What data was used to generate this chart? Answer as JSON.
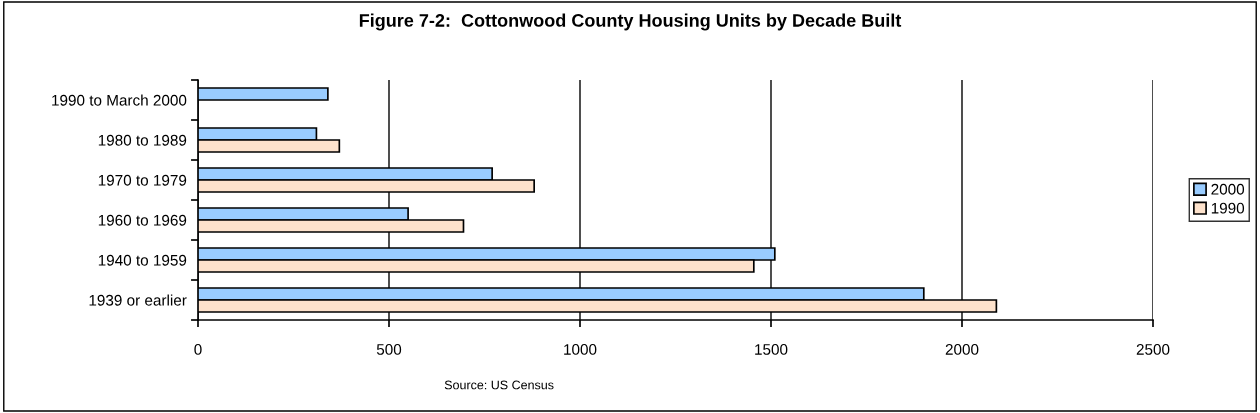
{
  "chart_data": {
    "type": "bar",
    "orientation": "horizontal",
    "title": "Figure 7-2:  Cottonwood County Housing Units by Decade Built",
    "categories": [
      "1990 to March 2000",
      "1980 to 1989",
      "1970 to 1979",
      "1960 to 1969",
      "1940 to 1959",
      "1939 or earlier"
    ],
    "series": [
      {
        "name": "2000",
        "color": "#99ccff",
        "values": [
          340,
          310,
          770,
          550,
          1510,
          1900
        ]
      },
      {
        "name": "1990",
        "color": "#fde2cc",
        "values": [
          null,
          370,
          880,
          695,
          1455,
          2090
        ]
      }
    ],
    "xlim": [
      0,
      2500
    ],
    "xticks": [
      0,
      500,
      1000,
      1500,
      2000,
      2500
    ],
    "grid": "x",
    "legend": "right",
    "annotations": [
      "Source: US Census"
    ]
  }
}
